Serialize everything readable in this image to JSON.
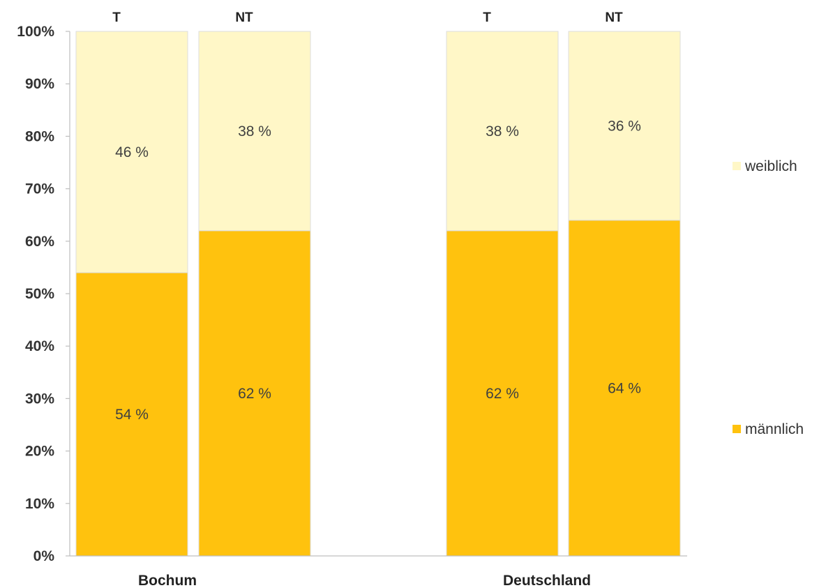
{
  "chart_data": {
    "type": "bar",
    "stacked": true,
    "percent": true,
    "groups": [
      {
        "label": "Bochum",
        "bars": [
          {
            "label": "T",
            "männlich": 54,
            "weiblich": 46
          },
          {
            "label": "NT",
            "männlich": 62,
            "weiblich": 38
          }
        ]
      },
      {
        "label": "Deutschland",
        "bars": [
          {
            "label": "T",
            "männlich": 62,
            "weiblich": 38
          },
          {
            "label": "NT",
            "männlich": 64,
            "weiblich": 36
          }
        ]
      }
    ],
    "categories": [
      "Bochum T",
      "Bochum NT",
      "Deutschland T",
      "Deutschland NT"
    ],
    "series": [
      {
        "name": "männlich",
        "color": "#FFC20E",
        "values": [
          54,
          62,
          62,
          64
        ],
        "labels": [
          "54 %",
          "62 %",
          "62 %",
          "64 %"
        ]
      },
      {
        "name": "weiblich",
        "color": "#FFF7C7",
        "values": [
          46,
          38,
          38,
          36
        ],
        "labels": [
          "46 %",
          "38 %",
          "38 %",
          "36 %"
        ]
      }
    ],
    "ylim": [
      0,
      100
    ],
    "yticks": [
      "0%",
      "10%",
      "20%",
      "30%",
      "40%",
      "50%",
      "60%",
      "70%",
      "80%",
      "90%",
      "100%"
    ],
    "legend_position": "right",
    "grid": false
  }
}
